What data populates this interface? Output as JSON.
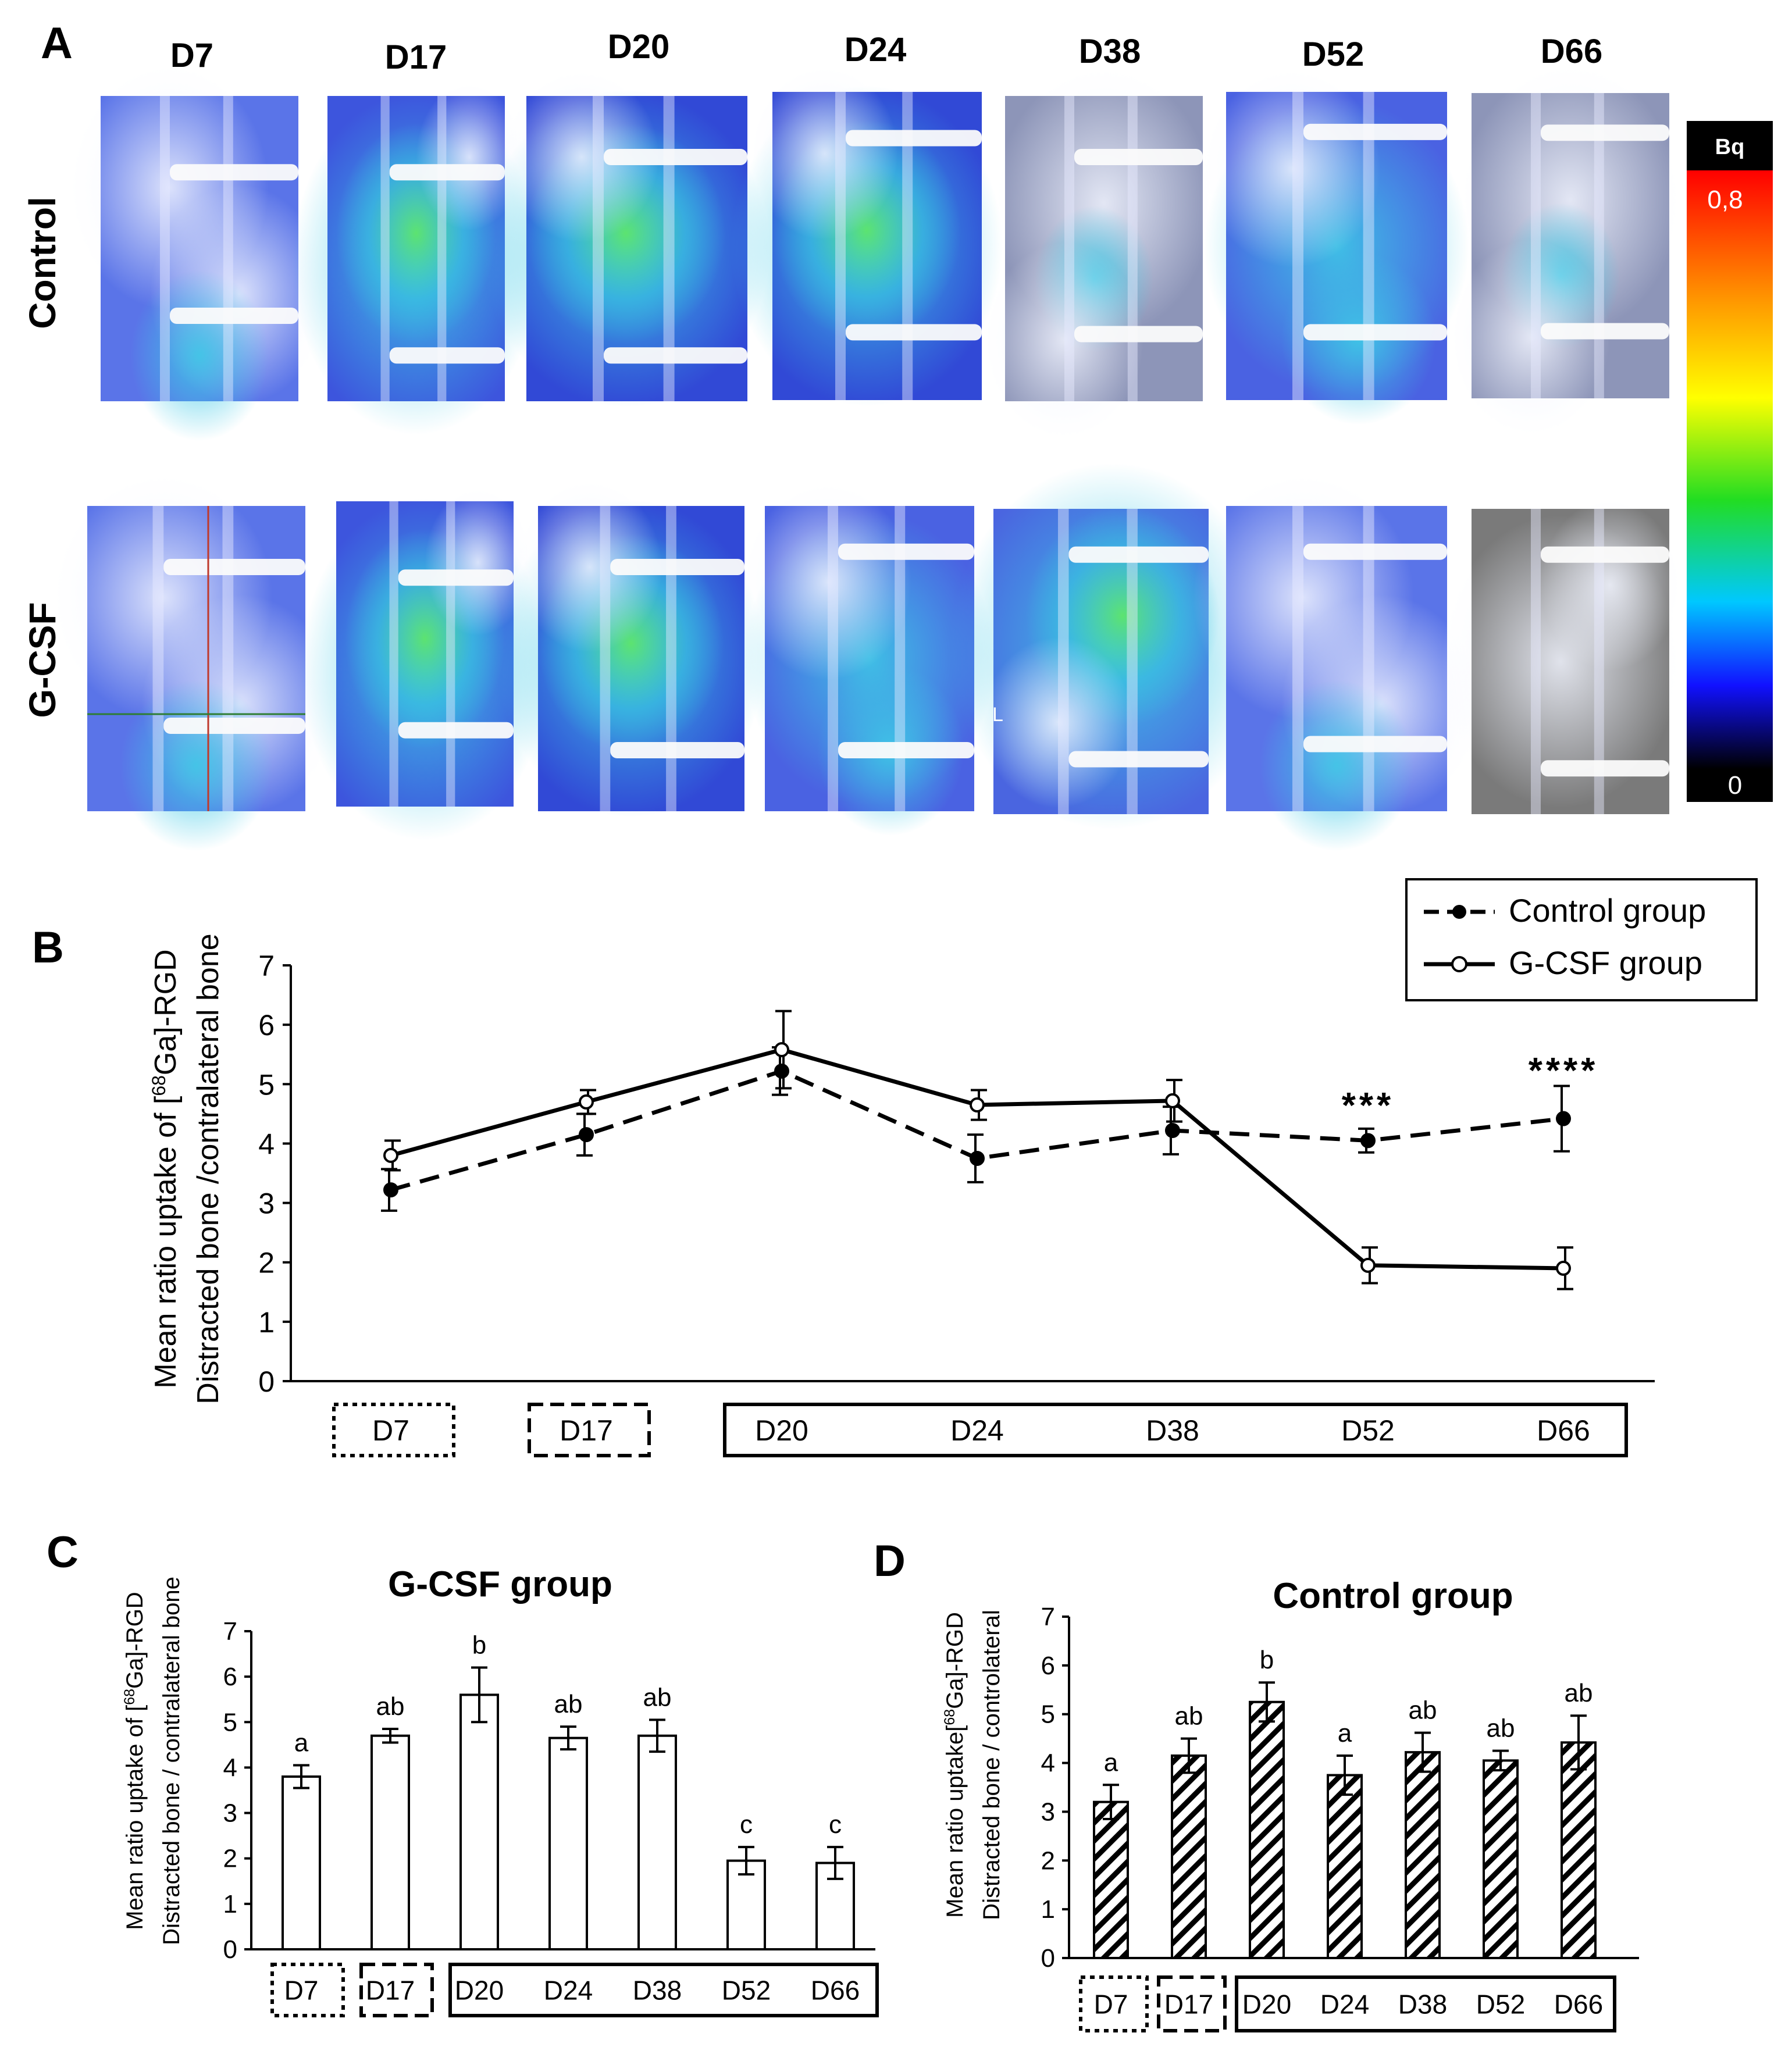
{
  "colors": {
    "control_line": "#000000",
    "gcsf_line": "#000000",
    "panel_bg": "#ffffff",
    "scan_blue": "#3f5be0",
    "scan_cyan": "#35b9e6",
    "scan_green": "#60e36f",
    "scan_white": "#e9efff",
    "scan_gray": "#8c8c8c",
    "colorbar": [
      "#ff0000",
      "#ffff00",
      "#00ff00",
      "#00ccff",
      "#0000ff",
      "#000000"
    ]
  },
  "panels": {
    "a_label": "A",
    "b_label": "B",
    "c_label": "C",
    "d_label": "D"
  },
  "panel_a": {
    "day_labels": [
      "D7",
      "D17",
      "D20",
      "D24",
      "D38",
      "D52",
      "D66"
    ],
    "row_labels": [
      "Control",
      "G-CSF"
    ],
    "colorbar": {
      "unit": "Bq",
      "max": "0,8",
      "min": "0"
    },
    "stray_label": "L",
    "images": {
      "control": [
        {
          "day": "D7",
          "tone": "blue-white"
        },
        {
          "day": "D17",
          "tone": "blue-cyan-green"
        },
        {
          "day": "D20",
          "tone": "blue-green"
        },
        {
          "day": "D24",
          "tone": "blue-green"
        },
        {
          "day": "D38",
          "tone": "gray-blue"
        },
        {
          "day": "D52",
          "tone": "blue-cyan"
        },
        {
          "day": "D66",
          "tone": "gray-blue"
        }
      ],
      "gcsf": [
        {
          "day": "D7",
          "tone": "blue-white"
        },
        {
          "day": "D17",
          "tone": "blue-cyan-green"
        },
        {
          "day": "D20",
          "tone": "blue-green"
        },
        {
          "day": "D24",
          "tone": "blue-cyan"
        },
        {
          "day": "D38",
          "tone": "cyan-green"
        },
        {
          "day": "D52",
          "tone": "blue-white"
        },
        {
          "day": "D66",
          "tone": "gray"
        }
      ]
    }
  },
  "chart_data": [
    {
      "id": "panel-b",
      "type": "line",
      "title": "",
      "ylabel_line1": "Mean ratio uptake of [",
      "ylabel_sup": "68",
      "ylabel_line1_end": "Ga]-RGD",
      "ylabel_line2": "Distracted bone /contralateral bone",
      "ylim": [
        0,
        7
      ],
      "yticks": [
        "0",
        "1",
        "2",
        "3",
        "4",
        "5",
        "6",
        "7"
      ],
      "categories": [
        "D7",
        "D17",
        "D20",
        "D24",
        "D38",
        "D52",
        "D66"
      ],
      "category_groups": [
        [
          "D7"
        ],
        [
          "D17"
        ],
        [
          "D20",
          "D24",
          "D38",
          "D52",
          "D66"
        ]
      ],
      "series": [
        {
          "name": "Control group",
          "style": "dashed",
          "marker": "filled",
          "values": [
            3.22,
            4.15,
            5.22,
            3.75,
            4.22,
            4.05,
            4.42
          ],
          "errors": [
            0.35,
            0.35,
            0.4,
            0.4,
            0.4,
            0.2,
            0.55
          ]
        },
        {
          "name": "G-CSF group",
          "style": "solid",
          "marker": "open",
          "values": [
            3.8,
            4.7,
            5.58,
            4.65,
            4.72,
            1.95,
            1.9
          ],
          "errors": [
            0.25,
            0.2,
            0.65,
            0.25,
            0.35,
            0.3,
            0.35
          ]
        }
      ],
      "annotations": [
        {
          "category": "D52",
          "text": "***"
        },
        {
          "category": "D66",
          "text": "****"
        }
      ]
    },
    {
      "id": "panel-c",
      "type": "bar",
      "title": "G-CSF group",
      "ylabel_line1": "Mean ratio uptake of [",
      "ylabel_sup": "68",
      "ylabel_line1_end": "Ga]-RGD",
      "ylabel_line2": "Distracted bone / contralateral bone",
      "ylim": [
        0,
        7
      ],
      "yticks": [
        "0",
        "1",
        "2",
        "3",
        "4",
        "5",
        "6",
        "7"
      ],
      "categories": [
        "D7",
        "D17",
        "D20",
        "D24",
        "D38",
        "D52",
        "D66"
      ],
      "category_groups": [
        [
          "D7"
        ],
        [
          "D17"
        ],
        [
          "D20",
          "D24",
          "D38",
          "D52",
          "D66"
        ]
      ],
      "values": [
        3.8,
        4.7,
        5.6,
        4.65,
        4.7,
        1.95,
        1.9
      ],
      "errors": [
        0.25,
        0.15,
        0.6,
        0.25,
        0.35,
        0.3,
        0.35
      ],
      "letters": [
        "a",
        "ab",
        "b",
        "ab",
        "ab",
        "c",
        "c"
      ],
      "fill": "open"
    },
    {
      "id": "panel-d",
      "type": "bar",
      "title": "Control group",
      "ylabel_line1": "Mean ratio uptake[",
      "ylabel_sup": "68",
      "ylabel_line1_end": "Ga]-RGD",
      "ylabel_line2": "Distracted bone / controlateral",
      "ylim": [
        0,
        7
      ],
      "yticks": [
        "0",
        "1",
        "2",
        "3",
        "4",
        "5",
        "6",
        "7"
      ],
      "categories": [
        "D7",
        "D17",
        "D20",
        "D24",
        "D38",
        "D52",
        "D66"
      ],
      "category_groups": [
        [
          "D7"
        ],
        [
          "D17"
        ],
        [
          "D20",
          "D24",
          "D38",
          "D52",
          "D66"
        ]
      ],
      "values": [
        3.2,
        4.15,
        5.25,
        3.75,
        4.22,
        4.05,
        4.42
      ],
      "errors": [
        0.35,
        0.35,
        0.4,
        0.4,
        0.4,
        0.2,
        0.55
      ],
      "letters": [
        "a",
        "ab",
        "b",
        "a",
        "ab",
        "ab",
        "ab"
      ],
      "fill": "hatched"
    }
  ]
}
